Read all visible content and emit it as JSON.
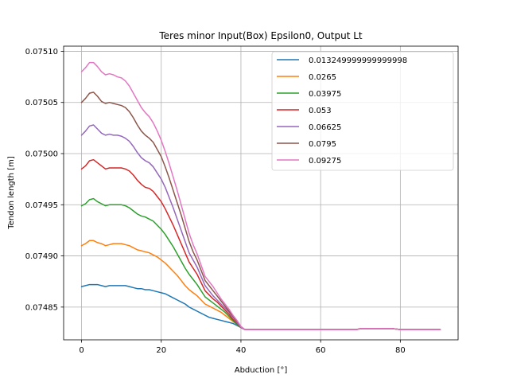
{
  "chart_data": {
    "type": "line",
    "title": "Teres minor Input(Box) Epsilon0, Output Lt",
    "xlabel": "Abduction [°]",
    "ylabel": "Tendon length [m]",
    "xlim": [
      -4.5,
      94.5
    ],
    "ylim": [
      0.074818,
      0.075105
    ],
    "xticks": [
      0,
      20,
      40,
      60,
      80
    ],
    "yticks": [
      0.07485,
      0.0749,
      0.07495,
      0.075,
      0.07505,
      0.0751
    ],
    "ytick_labels": [
      "0.07485",
      "0.07490",
      "0.07495",
      "0.07500",
      "0.07505",
      "0.07510"
    ],
    "grid": true,
    "legend_position": "upper right",
    "series": [
      {
        "name": "0.013249999999999998",
        "color": "#1f77b4",
        "x": [
          0,
          1,
          2,
          3,
          4,
          5,
          6,
          7,
          8,
          9,
          10,
          11,
          12,
          13,
          14,
          15,
          16,
          17,
          18,
          19,
          20,
          21,
          22,
          23,
          24,
          25,
          26,
          27,
          28,
          29,
          30,
          31,
          32,
          33,
          34,
          35,
          36,
          37,
          38,
          39,
          40,
          41,
          45,
          50,
          55,
          60,
          65,
          69,
          70,
          75,
          78,
          80,
          85,
          90
        ],
        "y": [
          0.07487,
          0.074871,
          0.074872,
          0.074872,
          0.074872,
          0.074871,
          0.07487,
          0.074871,
          0.074871,
          0.074871,
          0.074871,
          0.074871,
          0.07487,
          0.074869,
          0.074868,
          0.074868,
          0.074867,
          0.074867,
          0.074866,
          0.074865,
          0.074864,
          0.074863,
          0.074861,
          0.074859,
          0.074857,
          0.074855,
          0.074853,
          0.07485,
          0.074848,
          0.074846,
          0.074844,
          0.074842,
          0.07484,
          0.074839,
          0.074838,
          0.074837,
          0.074836,
          0.074835,
          0.074834,
          0.074832,
          0.07483,
          0.074828,
          0.074828,
          0.074828,
          0.074828,
          0.074828,
          0.074828,
          0.074828,
          0.074829,
          0.074829,
          0.074829,
          0.074828,
          0.074828,
          0.074828
        ]
      },
      {
        "name": "0.0265",
        "color": "#ff7f0e",
        "x": [
          0,
          1,
          2,
          3,
          4,
          5,
          6,
          7,
          8,
          9,
          10,
          11,
          12,
          13,
          14,
          15,
          16,
          17,
          18,
          19,
          20,
          21,
          22,
          23,
          24,
          25,
          26,
          27,
          28,
          29,
          30,
          31,
          32,
          33,
          34,
          35,
          36,
          37,
          38,
          39,
          40,
          41,
          45,
          50,
          55,
          60,
          65,
          69,
          70,
          75,
          78,
          80,
          85,
          90
        ],
        "y": [
          0.07491,
          0.074912,
          0.074915,
          0.074915,
          0.074913,
          0.074912,
          0.07491,
          0.074911,
          0.074912,
          0.074912,
          0.074912,
          0.074911,
          0.07491,
          0.074908,
          0.074906,
          0.074905,
          0.074904,
          0.074903,
          0.074901,
          0.074899,
          0.074896,
          0.074893,
          0.074889,
          0.074885,
          0.074881,
          0.074876,
          0.074871,
          0.074867,
          0.074864,
          0.074861,
          0.074857,
          0.074853,
          0.074851,
          0.074849,
          0.074847,
          0.074845,
          0.074842,
          0.074839,
          0.074836,
          0.074833,
          0.07483,
          0.074828,
          0.074828,
          0.074828,
          0.074828,
          0.074828,
          0.074828,
          0.074828,
          0.074829,
          0.074829,
          0.074829,
          0.074828,
          0.074828,
          0.074828
        ]
      },
      {
        "name": "0.03975",
        "color": "#2ca02c",
        "x": [
          0,
          1,
          2,
          3,
          4,
          5,
          6,
          7,
          8,
          9,
          10,
          11,
          12,
          13,
          14,
          15,
          16,
          17,
          18,
          19,
          20,
          21,
          22,
          23,
          24,
          25,
          26,
          27,
          28,
          29,
          30,
          31,
          32,
          33,
          34,
          35,
          36,
          37,
          38,
          39,
          40,
          41,
          45,
          50,
          55,
          60,
          65,
          69,
          70,
          75,
          78,
          80,
          85,
          90
        ],
        "y": [
          0.074949,
          0.074951,
          0.074955,
          0.074956,
          0.074953,
          0.074951,
          0.074949,
          0.07495,
          0.07495,
          0.07495,
          0.07495,
          0.074949,
          0.074947,
          0.074944,
          0.074941,
          0.074939,
          0.074938,
          0.074936,
          0.074934,
          0.07493,
          0.074926,
          0.074921,
          0.074915,
          0.074909,
          0.074902,
          0.074895,
          0.074888,
          0.074882,
          0.074877,
          0.074872,
          0.074866,
          0.07486,
          0.074857,
          0.074854,
          0.074851,
          0.074848,
          0.074845,
          0.074841,
          0.074837,
          0.074833,
          0.07483,
          0.074828,
          0.074828,
          0.074828,
          0.074828,
          0.074828,
          0.074828,
          0.074828,
          0.074829,
          0.074829,
          0.074829,
          0.074828,
          0.074828,
          0.074828
        ]
      },
      {
        "name": "0.053",
        "color": "#d62728",
        "x": [
          0,
          1,
          2,
          3,
          4,
          5,
          6,
          7,
          8,
          9,
          10,
          11,
          12,
          13,
          14,
          15,
          16,
          17,
          18,
          19,
          20,
          21,
          22,
          23,
          24,
          25,
          26,
          27,
          28,
          29,
          30,
          31,
          32,
          33,
          34,
          35,
          36,
          37,
          38,
          39,
          40,
          41,
          45,
          50,
          55,
          60,
          65,
          69,
          70,
          75,
          78,
          80,
          85,
          90
        ],
        "y": [
          0.074985,
          0.074988,
          0.074993,
          0.074994,
          0.074991,
          0.074988,
          0.074985,
          0.074986,
          0.074986,
          0.074986,
          0.074986,
          0.074985,
          0.074983,
          0.074979,
          0.074974,
          0.07497,
          0.074967,
          0.074966,
          0.074963,
          0.074958,
          0.074953,
          0.074946,
          0.074938,
          0.07493,
          0.074921,
          0.074912,
          0.074903,
          0.074894,
          0.074888,
          0.074882,
          0.074874,
          0.074866,
          0.074862,
          0.074858,
          0.074855,
          0.074851,
          0.074847,
          0.074843,
          0.074838,
          0.074834,
          0.07483,
          0.074828,
          0.074828,
          0.074828,
          0.074828,
          0.074828,
          0.074828,
          0.074828,
          0.074829,
          0.074829,
          0.074829,
          0.074828,
          0.074828,
          0.074828
        ]
      },
      {
        "name": "0.06625",
        "color": "#9467bd",
        "x": [
          0,
          1,
          2,
          3,
          4,
          5,
          6,
          7,
          8,
          9,
          10,
          11,
          12,
          13,
          14,
          15,
          16,
          17,
          18,
          19,
          20,
          21,
          22,
          23,
          24,
          25,
          26,
          27,
          28,
          29,
          30,
          31,
          32,
          33,
          34,
          35,
          36,
          37,
          38,
          39,
          40,
          41,
          45,
          50,
          55,
          60,
          65,
          69,
          70,
          75,
          78,
          80,
          85,
          90
        ],
        "y": [
          0.075018,
          0.075022,
          0.075027,
          0.075028,
          0.075024,
          0.07502,
          0.075018,
          0.075019,
          0.075018,
          0.075018,
          0.075017,
          0.075015,
          0.075012,
          0.075007,
          0.075001,
          0.074996,
          0.074993,
          0.074991,
          0.074987,
          0.074981,
          0.074975,
          0.074967,
          0.074957,
          0.074947,
          0.074936,
          0.074925,
          0.074914,
          0.074903,
          0.074896,
          0.074889,
          0.07488,
          0.074871,
          0.074866,
          0.074861,
          0.074857,
          0.074853,
          0.074849,
          0.074845,
          0.07484,
          0.074835,
          0.07483,
          0.074828,
          0.074828,
          0.074828,
          0.074828,
          0.074828,
          0.074828,
          0.074828,
          0.074829,
          0.074829,
          0.074829,
          0.074828,
          0.074828,
          0.074828
        ]
      },
      {
        "name": "0.0795",
        "color": "#8c564b",
        "x": [
          0,
          1,
          2,
          3,
          4,
          5,
          6,
          7,
          8,
          9,
          10,
          11,
          12,
          13,
          14,
          15,
          16,
          17,
          18,
          19,
          20,
          21,
          22,
          23,
          24,
          25,
          26,
          27,
          28,
          29,
          30,
          31,
          32,
          33,
          34,
          35,
          36,
          37,
          38,
          39,
          40,
          41,
          45,
          50,
          55,
          60,
          65,
          69,
          70,
          75,
          78,
          80,
          85,
          90
        ],
        "y": [
          0.07505,
          0.075054,
          0.075059,
          0.07506,
          0.075056,
          0.075051,
          0.075049,
          0.07505,
          0.075049,
          0.075048,
          0.075047,
          0.075045,
          0.075041,
          0.075035,
          0.075028,
          0.075022,
          0.075018,
          0.075015,
          0.075011,
          0.075004,
          0.074997,
          0.074987,
          0.074976,
          0.074964,
          0.074952,
          0.07494,
          0.074927,
          0.074914,
          0.074904,
          0.074896,
          0.074886,
          0.074876,
          0.074871,
          0.074866,
          0.074861,
          0.074856,
          0.074851,
          0.074846,
          0.074841,
          0.074836,
          0.074831,
          0.074828,
          0.074828,
          0.074828,
          0.074828,
          0.074828,
          0.074828,
          0.074828,
          0.074829,
          0.074829,
          0.074829,
          0.074828,
          0.074828,
          0.074828
        ]
      },
      {
        "name": "0.09275",
        "color": "#e377c2",
        "x": [
          0,
          1,
          2,
          3,
          4,
          5,
          6,
          7,
          8,
          9,
          10,
          11,
          12,
          13,
          14,
          15,
          16,
          17,
          18,
          19,
          20,
          21,
          22,
          23,
          24,
          25,
          26,
          27,
          28,
          29,
          30,
          31,
          32,
          33,
          34,
          35,
          36,
          37,
          38,
          39,
          40,
          41,
          45,
          50,
          55,
          60,
          65,
          69,
          70,
          75,
          78,
          80,
          85,
          90
        ],
        "y": [
          0.07508,
          0.075084,
          0.075089,
          0.075089,
          0.075085,
          0.07508,
          0.075077,
          0.075078,
          0.075077,
          0.075075,
          0.075074,
          0.075071,
          0.075066,
          0.075059,
          0.075052,
          0.075045,
          0.07504,
          0.075036,
          0.07503,
          0.075022,
          0.075013,
          0.075002,
          0.07499,
          0.074977,
          0.074964,
          0.07495,
          0.074936,
          0.074922,
          0.074911,
          0.074902,
          0.074891,
          0.07488,
          0.074875,
          0.07487,
          0.074864,
          0.074858,
          0.074853,
          0.074848,
          0.074842,
          0.074837,
          0.074831,
          0.074828,
          0.074828,
          0.074828,
          0.074828,
          0.074828,
          0.074828,
          0.074828,
          0.074829,
          0.074829,
          0.074829,
          0.074828,
          0.074828,
          0.074828
        ]
      }
    ]
  }
}
